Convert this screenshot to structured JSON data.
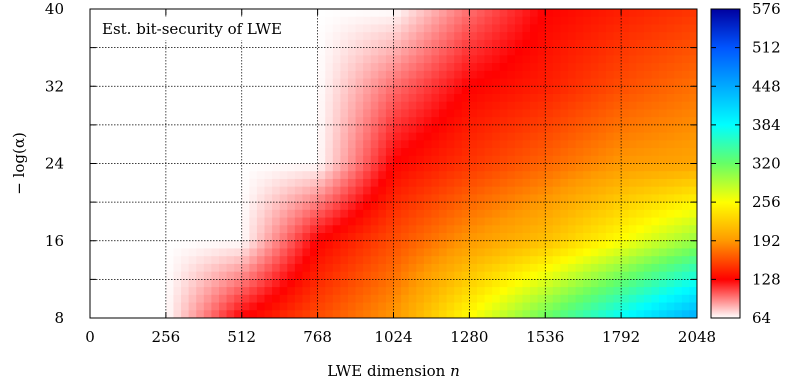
{
  "chart_data": {
    "type": "heatmap",
    "title": "Est. bit-security of LWE",
    "xlabel": "LWE dimension",
    "xlabel_var": "n",
    "ylabel": "− log(α)",
    "xlim": [
      0,
      2048
    ],
    "ylim": [
      8,
      40
    ],
    "x_ticks": [
      "0",
      "256",
      "512",
      "768",
      "1024",
      "1280",
      "1536",
      "1792",
      "2048"
    ],
    "y_ticks": [
      "8",
      "16",
      "24",
      "32",
      "40"
    ],
    "grid": true,
    "colorbar": {
      "range": [
        64,
        576
      ],
      "ticks": [
        "64",
        "128",
        "192",
        "256",
        "320",
        "384",
        "448",
        "512",
        "576"
      ],
      "stops": [
        {
          "value": 64,
          "color": "#ffffff"
        },
        {
          "value": 128,
          "color": "#ff0000"
        },
        {
          "value": 192,
          "color": "#ff9900"
        },
        {
          "value": 256,
          "color": "#ffff00"
        },
        {
          "value": 320,
          "color": "#66ff66"
        },
        {
          "value": 384,
          "color": "#00ffff"
        },
        {
          "value": 448,
          "color": "#00aaff"
        },
        {
          "value": 512,
          "color": "#0055ff"
        },
        {
          "value": 576,
          "color": "#0000a0"
        }
      ]
    },
    "grid_samples": {
      "description_x": "n values",
      "x": [
        0,
        256,
        512,
        768,
        1024,
        1280,
        1536,
        1792,
        2048
      ],
      "y": [
        8,
        16,
        24,
        32,
        40
      ],
      "z": [
        [
          64,
          64,
          128,
          160,
          192,
          256,
          320,
          384,
          448
        ],
        [
          64,
          64,
          64,
          128,
          160,
          192,
          216,
          256,
          300
        ],
        [
          64,
          64,
          64,
          64,
          128,
          150,
          170,
          192,
          200
        ],
        [
          64,
          64,
          64,
          64,
          100,
          128,
          140,
          160,
          175
        ],
        [
          64,
          64,
          64,
          64,
          64,
          100,
          128,
          140,
          150
        ]
      ]
    }
  }
}
